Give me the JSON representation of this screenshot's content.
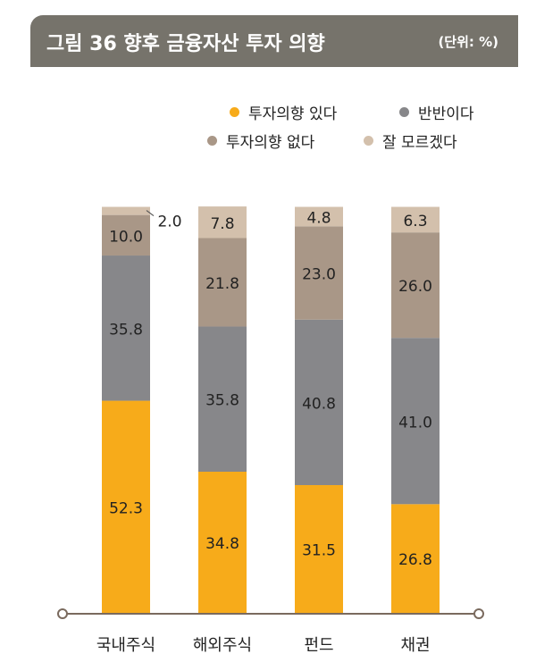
{
  "header": {
    "title": "그림 36  향후 금융자산 투자 의향",
    "unit": "(단위: %)"
  },
  "chart_data": {
    "type": "bar",
    "stacked": true,
    "categories": [
      "국내주식",
      "해외주식",
      "펀드",
      "채권"
    ],
    "series": [
      {
        "name": "투자의향 있다",
        "color": "#f7ab1a",
        "values": [
          52.3,
          34.8,
          31.5,
          26.8
        ]
      },
      {
        "name": "반반이다",
        "color": "#87878a",
        "values": [
          35.8,
          35.8,
          40.8,
          41.0
        ]
      },
      {
        "name": "투자의향 없다",
        "color": "#a99787",
        "values": [
          10.0,
          21.8,
          23.0,
          26.0
        ]
      },
      {
        "name": "잘 모르겠다",
        "color": "#d3c0ac",
        "values": [
          2.0,
          7.8,
          4.8,
          6.3
        ]
      }
    ],
    "labels": [
      [
        "52.3",
        "35.8",
        "10.0",
        "2.0"
      ],
      [
        "34.8",
        "35.8",
        "21.8",
        "7.8"
      ],
      [
        "31.5",
        "40.8",
        "23.0",
        "4.8"
      ],
      [
        "26.8",
        "41.0",
        "26.0",
        "6.3"
      ]
    ],
    "ylim": [
      0,
      100
    ],
    "legend_position": "top-right",
    "grid": false
  }
}
